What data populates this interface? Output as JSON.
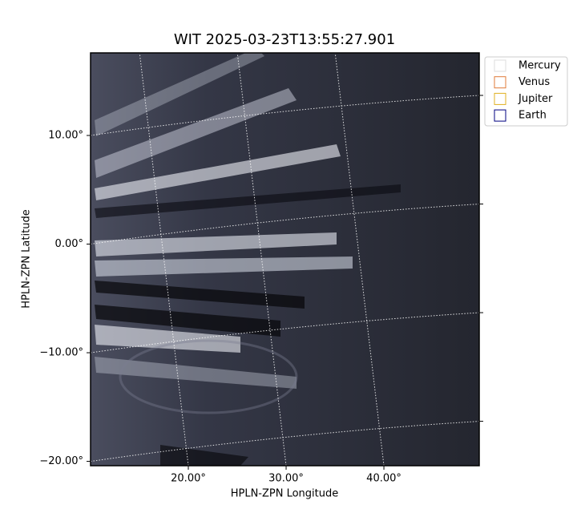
{
  "chart_data": {
    "type": "image",
    "title": "WIT 2025-03-23T13:55:27.901",
    "xlabel": "HPLN-ZPN Longitude",
    "ylabel": "HPLN-ZPN Latitude",
    "xlim": [
      10,
      49.75
    ],
    "ylim": [
      -20.4,
      17.6
    ],
    "xticks": [
      {
        "value": 20,
        "label": "20.00°"
      },
      {
        "value": 30,
        "label": "30.00°"
      },
      {
        "value": 40,
        "label": "40.00°"
      }
    ],
    "yticks": [
      {
        "value": -20,
        "label": "−20.00°"
      },
      {
        "value": -10,
        "label": "−10.00°"
      },
      {
        "value": 0,
        "label": "0.00°"
      },
      {
        "value": 10,
        "label": "10.00°"
      }
    ],
    "grid": true,
    "legend_position": "upper right",
    "legend": [
      {
        "name": "Mercury",
        "color": "#dddddd"
      },
      {
        "name": "Venus",
        "color": "#e07b39"
      },
      {
        "name": "Jupiter",
        "color": "#e0b020"
      },
      {
        "name": "Earth",
        "color": "#000080"
      }
    ]
  }
}
